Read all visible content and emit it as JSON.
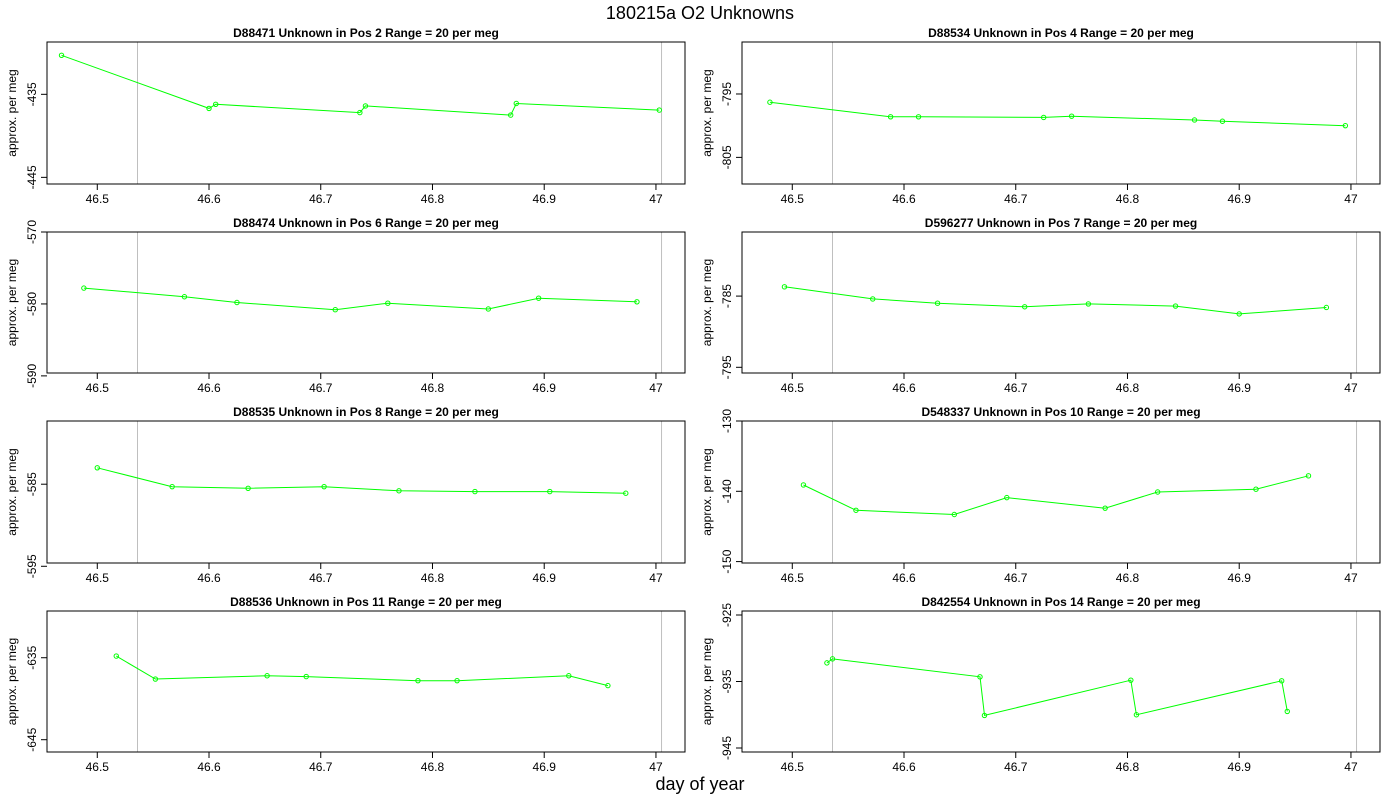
{
  "title": "180215a  O2 Unknowns",
  "xlabel": "day of year",
  "colors": {
    "series": "#00ff00",
    "frame": "#000000",
    "refline": "#bfbfbf"
  },
  "chart_data": [
    {
      "type": "line",
      "title": "D88471    Unknown in Pos 2         Range = 20 per meg",
      "ylabel": "approx. per meg",
      "xlim": [
        46.455,
        47.026
      ],
      "ylim": [
        -445.8,
        -428.7
      ],
      "xticks": [
        46.5,
        46.6,
        46.7,
        46.8,
        46.9,
        47.0
      ],
      "yticks": [
        -435,
        -445
      ],
      "reference_x": [
        46.536,
        47.005
      ],
      "x": [
        46.468,
        46.6,
        46.606,
        46.735,
        46.74,
        46.87,
        46.875,
        47.003
      ],
      "y": [
        -430.3,
        -436.7,
        -436.2,
        -437.2,
        -436.4,
        -437.5,
        -436.1,
        -436.9
      ]
    },
    {
      "type": "line",
      "title": "D88534    Unknown in Pos 4         Range = 20 per meg",
      "ylabel": "approx. per meg",
      "xlim": [
        46.455,
        47.026
      ],
      "ylim": [
        -809.2,
        -786.8
      ],
      "xticks": [
        46.5,
        46.6,
        46.7,
        46.8,
        46.9,
        47.0
      ],
      "yticks": [
        -795,
        -805
      ],
      "reference_x": [
        46.536,
        47.005
      ],
      "x": [
        46.48,
        46.588,
        46.613,
        46.725,
        46.75,
        46.86,
        46.885,
        46.995
      ],
      "y": [
        -796.3,
        -798.6,
        -798.6,
        -798.7,
        -798.5,
        -799.1,
        -799.3,
        -800.0
      ]
    },
    {
      "type": "line",
      "title": "D88474    Unknown in Pos 6         Range = 20 per meg",
      "ylabel": "approx. per meg",
      "xlim": [
        46.455,
        47.026
      ],
      "ylim": [
        -589.6,
        -570.0
      ],
      "xticks": [
        46.5,
        46.6,
        46.7,
        46.8,
        46.9,
        47.0
      ],
      "yticks": [
        -570,
        -580,
        -590
      ],
      "reference_x": [
        46.536,
        47.005
      ],
      "x": [
        46.488,
        46.578,
        46.625,
        46.713,
        46.76,
        46.85,
        46.895,
        46.983
      ],
      "y": [
        -577.8,
        -579.0,
        -579.8,
        -580.8,
        -579.9,
        -580.7,
        -579.2,
        -579.7
      ]
    },
    {
      "type": "line",
      "title": "D596277    Unknown in Pos 7         Range = 20 per meg",
      "ylabel": "approx. per meg",
      "xlim": [
        46.455,
        47.026
      ],
      "ylim": [
        -795.8,
        -776.0
      ],
      "xticks": [
        46.5,
        46.6,
        46.7,
        46.8,
        46.9,
        47.0
      ],
      "yticks": [
        -785,
        -795
      ],
      "reference_x": [
        46.536,
        47.005
      ],
      "x": [
        46.493,
        46.572,
        46.63,
        46.708,
        46.765,
        46.843,
        46.9,
        46.978
      ],
      "y": [
        -783.7,
        -785.4,
        -786.0,
        -786.5,
        -786.1,
        -786.4,
        -787.5,
        -786.6
      ]
    },
    {
      "type": "line",
      "title": "D88535    Unknown in Pos 8         Range = 20 per meg",
      "ylabel": "approx. per meg",
      "xlim": [
        46.455,
        47.026
      ],
      "ylim": [
        -594.6,
        -577.3
      ],
      "xticks": [
        46.5,
        46.6,
        46.7,
        46.8,
        46.9,
        47.0
      ],
      "yticks": [
        -585,
        -595
      ],
      "reference_x": [
        46.536,
        47.005
      ],
      "x": [
        46.5,
        46.567,
        46.635,
        46.703,
        46.77,
        46.838,
        46.905,
        46.973
      ],
      "y": [
        -583.0,
        -585.3,
        -585.5,
        -585.3,
        -585.8,
        -585.9,
        -585.9,
        -586.1
      ]
    },
    {
      "type": "line",
      "title": "D548337    Unknown in Pos 10         Range = 20 per meg",
      "ylabel": "approx. per meg",
      "xlim": [
        46.455,
        47.026
      ],
      "ylim": [
        -150.2,
        -130.0
      ],
      "xticks": [
        46.5,
        46.6,
        46.7,
        46.8,
        46.9,
        47.0
      ],
      "yticks": [
        -130,
        -140,
        -150
      ],
      "reference_x": [
        46.536,
        47.005
      ],
      "x": [
        46.51,
        46.557,
        46.645,
        46.692,
        46.78,
        46.827,
        46.915,
        46.962
      ],
      "y": [
        -139.1,
        -142.7,
        -143.3,
        -140.9,
        -142.4,
        -140.1,
        -139.7,
        -137.8
      ]
    },
    {
      "type": "line",
      "title": "D88536    Unknown in Pos 11         Range = 20 per meg",
      "ylabel": "approx. per meg",
      "xlim": [
        46.455,
        47.026
      ],
      "ylim": [
        -646.5,
        -629.3
      ],
      "xticks": [
        46.5,
        46.6,
        46.7,
        46.8,
        46.9,
        47.0
      ],
      "yticks": [
        -635,
        -645
      ],
      "reference_x": [
        46.536,
        47.005
      ],
      "x": [
        46.517,
        46.552,
        46.652,
        46.687,
        46.787,
        46.822,
        46.922,
        46.957
      ],
      "y": [
        -634.8,
        -637.6,
        -637.2,
        -637.3,
        -637.8,
        -637.8,
        -637.2,
        -638.4
      ]
    },
    {
      "type": "line",
      "title": "D842554    Unknown in Pos 14         Range = 20 per meg",
      "ylabel": "approx. per meg",
      "xlim": [
        46.455,
        47.026
      ],
      "ylim": [
        -945.6,
        -924.4
      ],
      "xticks": [
        46.5,
        46.6,
        46.7,
        46.8,
        46.9,
        47.0
      ],
      "yticks": [
        -925,
        -935,
        -945
      ],
      "reference_x": [
        46.536,
        47.005
      ],
      "x": [
        46.531,
        46.536,
        46.668,
        46.672,
        46.803,
        46.808,
        46.938,
        46.943
      ],
      "y": [
        -932.2,
        -931.6,
        -934.3,
        -940.1,
        -934.8,
        -940.0,
        -934.9,
        -939.5
      ]
    }
  ]
}
